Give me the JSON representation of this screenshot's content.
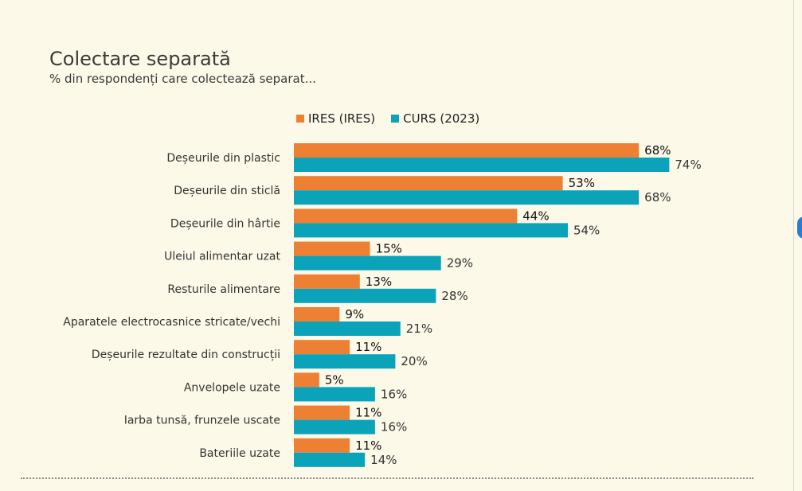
{
  "title": "Colectare separată",
  "subtitle": "% din respondenți care colectează separat...",
  "colors": {
    "series1": "#ee8033",
    "series2": "#0aa3ba",
    "background": "#fcf9e8"
  },
  "chart_data": {
    "type": "bar",
    "orientation": "horizontal",
    "title": "Colectare separată",
    "subtitle": "% din respondenți care colectează separat...",
    "categories": [
      "Deșeurile din plastic",
      "Deșeurile din sticlă",
      "Deșeurile din hârtie",
      "Uleiul alimentar uzat",
      "Resturile alimentare",
      "Aparatele electrocasnice stricate/vechi",
      "Deșeurile rezultate din construcții",
      "Anvelopele uzate",
      "Iarba tunsă, frunzele uscate",
      "Bateriile uzate"
    ],
    "series": [
      {
        "name": "IRES (IRES)",
        "values": [
          68,
          53,
          44,
          15,
          13,
          9,
          11,
          5,
          11,
          11
        ],
        "labels": [
          "68%",
          "53%",
          "44%",
          "15%",
          "13%",
          "9%",
          "11%",
          "5%",
          "11%",
          "11%"
        ]
      },
      {
        "name": "CURS (2023)",
        "values": [
          74,
          68,
          54,
          29,
          28,
          21,
          20,
          16,
          16,
          14
        ],
        "labels": [
          "74%",
          "68%",
          "54%",
          "29%",
          "28%",
          "21%",
          "20%",
          "16%",
          "16%",
          "14%"
        ]
      }
    ],
    "unit": "%",
    "xlim": [
      0,
      100
    ],
    "grid": false,
    "legend_position": "top"
  }
}
